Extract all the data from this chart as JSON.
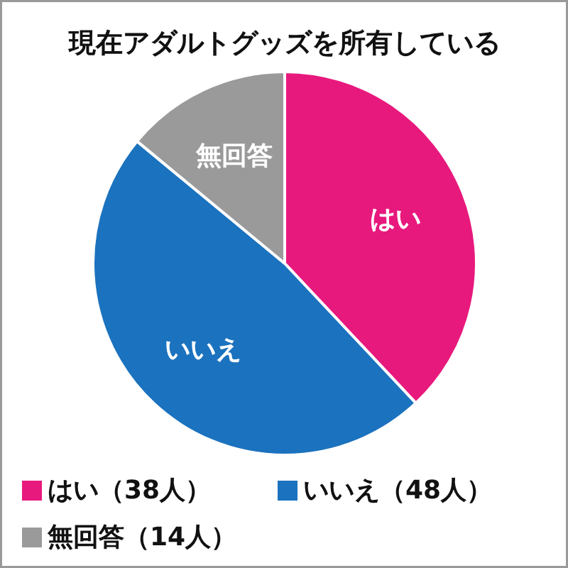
{
  "chart_data": {
    "type": "pie",
    "title": "現在アダルトグッズを所有している",
    "categories": [
      "はい",
      "いいえ",
      "無回答"
    ],
    "values": [
      38,
      48,
      14
    ],
    "value_labels": [
      "（38人）",
      "（48人）",
      "（14人）"
    ],
    "colors": [
      "#e8197d",
      "#1b72be",
      "#9a9a9a"
    ],
    "legend": "bottom"
  }
}
